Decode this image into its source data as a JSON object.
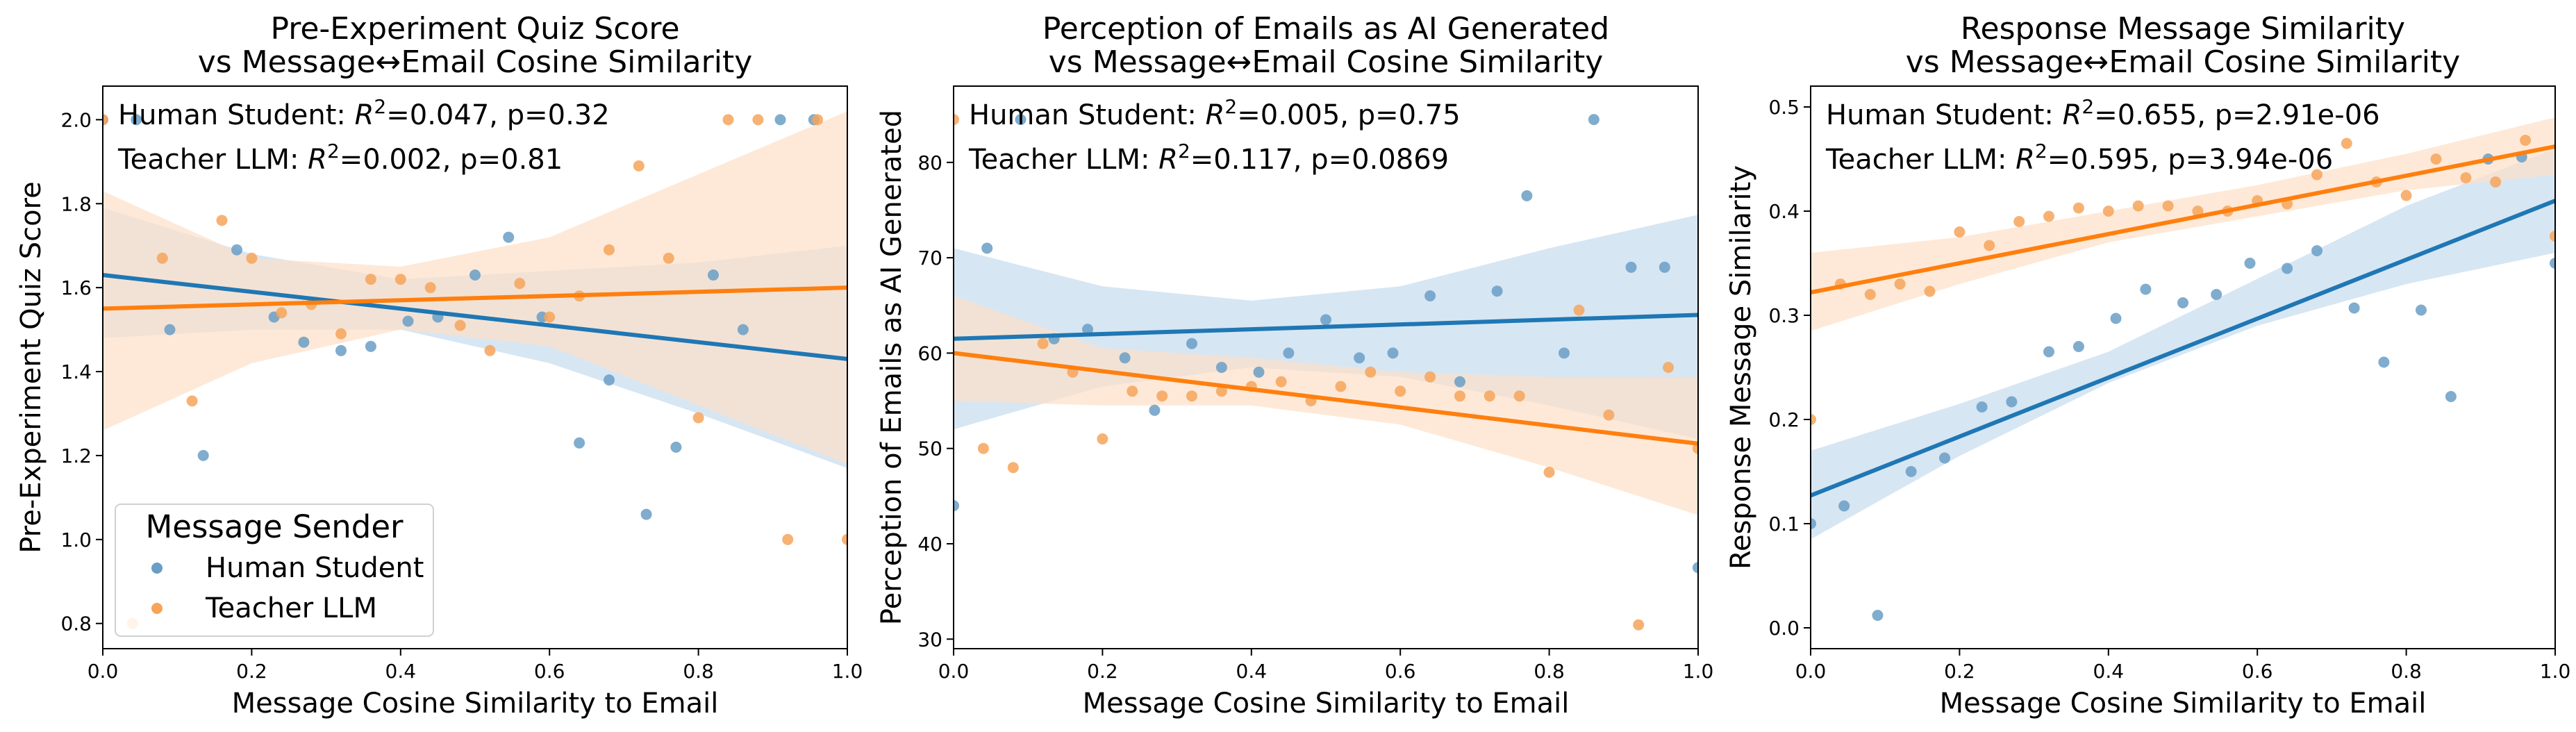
{
  "figure": {
    "legend": {
      "title": "Message Sender",
      "placement": "lower-left of first panel",
      "entries": [
        "Human Student",
        "Teacher LLM"
      ]
    }
  },
  "colors": {
    "human": "#1f77b4",
    "teacher": "#ff7f0e",
    "human_point": "#6a9ec6",
    "teacher_point": "#f6a45a",
    "human_band": "#c6dcee",
    "teacher_band": "#fde0c8"
  },
  "chart_data": [
    {
      "type": "scatter",
      "title_line1": "Pre-Experiment Quiz Score",
      "title_line2": "vs Message↔Email Cosine Similarity",
      "xlabel": "Message Cosine Similarity to Email",
      "ylabel": "Pre-Experiment Quiz Score",
      "xlim": [
        0,
        1
      ],
      "ylim": [
        0.74,
        2.08
      ],
      "xticks": [
        0.0,
        0.2,
        0.4,
        0.6,
        0.8,
        1.0
      ],
      "xtick_labels": [
        "0.0",
        "0.2",
        "0.4",
        "0.6",
        "0.8",
        "1.0"
      ],
      "yticks": [
        0.8,
        1.0,
        1.2,
        1.4,
        1.6,
        1.8,
        2.0
      ],
      "ytick_labels": [
        "0.8",
        "1.0",
        "1.2",
        "1.4",
        "1.6",
        "1.8",
        "2.0"
      ],
      "annotations": [
        {
          "series": "Human Student",
          "prefix": "Human Student: ",
          "r2": "=0.047, p=0.32"
        },
        {
          "series": "Teacher LLM",
          "prefix": "Teacher LLM: ",
          "r2": "=0.002, p=0.81"
        }
      ],
      "series": [
        {
          "name": "Human Student",
          "fit": {
            "x": [
              0,
              1
            ],
            "y": [
              1.63,
              1.43
            ]
          },
          "band": {
            "x": [
              0,
              0.2,
              0.4,
              0.6,
              0.8,
              1.0
            ],
            "lower": [
              1.48,
              1.5,
              1.5,
              1.42,
              1.3,
              1.17
            ],
            "upper": [
              1.79,
              1.68,
              1.62,
              1.64,
              1.66,
              1.7
            ]
          },
          "x": [
            0.0,
            0.045,
            0.09,
            0.135,
            0.18,
            0.23,
            0.27,
            0.32,
            0.36,
            0.41,
            0.45,
            0.5,
            0.545,
            0.59,
            0.64,
            0.68,
            0.73,
            0.77,
            0.82,
            0.86,
            0.91,
            0.955
          ],
          "y": [
            2.0,
            2.0,
            1.5,
            1.2,
            1.69,
            1.53,
            1.47,
            1.45,
            1.46,
            1.52,
            1.53,
            1.63,
            1.72,
            1.53,
            1.23,
            1.38,
            1.06,
            1.22,
            1.63,
            1.5,
            2.0,
            2.0
          ]
        },
        {
          "name": "Teacher LLM",
          "fit": {
            "x": [
              0,
              1
            ],
            "y": [
              1.55,
              1.6
            ]
          },
          "band": {
            "x": [
              0,
              0.2,
              0.4,
              0.6,
              0.8,
              1.0
            ],
            "lower": [
              1.26,
              1.42,
              1.5,
              1.46,
              1.32,
              1.18
            ],
            "upper": [
              1.83,
              1.67,
              1.65,
              1.72,
              1.87,
              2.02
            ]
          },
          "x": [
            0.0,
            0.04,
            0.08,
            0.12,
            0.16,
            0.2,
            0.24,
            0.28,
            0.32,
            0.36,
            0.4,
            0.44,
            0.48,
            0.52,
            0.56,
            0.6,
            0.64,
            0.68,
            0.72,
            0.76,
            0.8,
            0.84,
            0.88,
            0.92,
            0.96,
            1.0
          ],
          "y": [
            2.0,
            0.8,
            1.67,
            1.33,
            1.76,
            1.67,
            1.54,
            1.56,
            1.49,
            1.62,
            1.62,
            1.6,
            1.51,
            1.45,
            1.61,
            1.53,
            1.58,
            1.69,
            1.89,
            1.67,
            1.29,
            2.0,
            2.0,
            1.0,
            2.0,
            1.0
          ]
        }
      ]
    },
    {
      "type": "scatter",
      "title_line1": "Perception of Emails as AI Generated",
      "title_line2": "vs Message↔Email Cosine Similarity",
      "xlabel": "Message Cosine Similarity to Email",
      "ylabel": "Perception of Emails as AI Generated",
      "xlim": [
        0,
        1
      ],
      "ylim": [
        29,
        88
      ],
      "xticks": [
        0.0,
        0.2,
        0.4,
        0.6,
        0.8,
        1.0
      ],
      "xtick_labels": [
        "0.0",
        "0.2",
        "0.4",
        "0.6",
        "0.8",
        "1.0"
      ],
      "yticks": [
        30,
        40,
        50,
        60,
        70,
        80
      ],
      "ytick_labels": [
        "30",
        "40",
        "50",
        "60",
        "70",
        "80"
      ],
      "annotations": [
        {
          "series": "Human Student",
          "prefix": "Human Student: ",
          "r2": "=0.005, p=0.75"
        },
        {
          "series": "Teacher LLM",
          "prefix": "Teacher LLM: ",
          "r2": "=0.117, p=0.0869"
        }
      ],
      "series": [
        {
          "name": "Human Student",
          "fit": {
            "x": [
              0,
              1
            ],
            "y": [
              61.5,
              64
            ]
          },
          "band": {
            "x": [
              0,
              0.2,
              0.4,
              0.6,
              0.8,
              1.0
            ],
            "lower": [
              52,
              56.5,
              58.5,
              57.5,
              54.5,
              51
            ],
            "upper": [
              71,
              67,
              65.5,
              67,
              71,
              74.5
            ]
          },
          "x": [
            0.0,
            0.045,
            0.09,
            0.135,
            0.18,
            0.23,
            0.27,
            0.32,
            0.36,
            0.41,
            0.45,
            0.5,
            0.545,
            0.59,
            0.64,
            0.68,
            0.73,
            0.77,
            0.82,
            0.86,
            0.91,
            0.955,
            1.0
          ],
          "y": [
            44,
            71,
            84.5,
            61.5,
            62.5,
            59.5,
            54,
            61,
            58.5,
            58,
            60,
            63.5,
            59.5,
            60,
            66,
            57,
            66.5,
            76.5,
            60,
            84.5,
            69,
            69,
            37.5
          ]
        },
        {
          "name": "Teacher LLM",
          "fit": {
            "x": [
              0,
              1
            ],
            "y": [
              60,
              50.5
            ]
          },
          "band": {
            "x": [
              0,
              0.2,
              0.4,
              0.6,
              0.8,
              1.0
            ],
            "lower": [
              55,
              54.5,
              54.5,
              52.5,
              48,
              43
            ],
            "upper": [
              66,
              60.5,
              59.5,
              58,
              57.5,
              57.5
            ]
          },
          "x": [
            0.0,
            0.04,
            0.08,
            0.12,
            0.16,
            0.2,
            0.24,
            0.28,
            0.32,
            0.36,
            0.4,
            0.44,
            0.48,
            0.52,
            0.56,
            0.6,
            0.64,
            0.68,
            0.72,
            0.76,
            0.8,
            0.84,
            0.88,
            0.92,
            0.96,
            1.0
          ],
          "y": [
            84.5,
            50,
            48,
            61,
            58,
            51,
            56,
            55.5,
            55.5,
            56,
            56.5,
            57,
            55,
            56.5,
            58,
            56,
            57.5,
            55.5,
            55.5,
            55.5,
            47.5,
            64.5,
            53.5,
            31.5,
            58.5,
            50
          ]
        }
      ]
    },
    {
      "type": "scatter",
      "title_line1": "Response Message Similarity",
      "title_line2": "vs Message↔Email Cosine Similarity",
      "xlabel": "Message Cosine Similarity to Email",
      "ylabel": "Response Message Similarity",
      "xlim": [
        0,
        1
      ],
      "ylim": [
        -0.02,
        0.52
      ],
      "xticks": [
        0.0,
        0.2,
        0.4,
        0.6,
        0.8,
        1.0
      ],
      "xtick_labels": [
        "0.0",
        "0.2",
        "0.4",
        "0.6",
        "0.8",
        "1.0"
      ],
      "yticks": [
        0.0,
        0.1,
        0.2,
        0.3,
        0.4,
        0.5
      ],
      "ytick_labels": [
        "0.0",
        "0.1",
        "0.2",
        "0.3",
        "0.4",
        "0.5"
      ],
      "annotations": [
        {
          "series": "Human Student",
          "prefix": "Human Student: ",
          "r2": "=0.655, p=2.91e-06"
        },
        {
          "series": "Teacher LLM",
          "prefix": "Teacher LLM: ",
          "r2": "=0.595, p=3.94e-06"
        }
      ],
      "series": [
        {
          "name": "Human Student",
          "fit": {
            "x": [
              0,
              1
            ],
            "y": [
              0.127,
              0.41
            ]
          },
          "band": {
            "x": [
              0,
              0.2,
              0.4,
              0.6,
              0.8,
              1.0
            ],
            "lower": [
              0.085,
              0.165,
              0.235,
              0.29,
              0.33,
              0.36
            ],
            "upper": [
              0.17,
              0.215,
              0.265,
              0.335,
              0.405,
              0.46
            ]
          },
          "x": [
            0.0,
            0.045,
            0.09,
            0.135,
            0.18,
            0.23,
            0.27,
            0.32,
            0.36,
            0.41,
            0.45,
            0.5,
            0.545,
            0.59,
            0.64,
            0.68,
            0.73,
            0.77,
            0.82,
            0.86,
            0.91,
            0.955,
            1.0
          ],
          "y": [
            0.1,
            0.117,
            0.012,
            0.15,
            0.163,
            0.212,
            0.217,
            0.265,
            0.27,
            0.297,
            0.325,
            0.312,
            0.32,
            0.35,
            0.345,
            0.362,
            0.307,
            0.255,
            0.305,
            0.222,
            0.45,
            0.452,
            0.35
          ]
        },
        {
          "name": "Teacher LLM",
          "fit": {
            "x": [
              0,
              1
            ],
            "y": [
              0.322,
              0.462
            ]
          },
          "band": {
            "x": [
              0,
              0.2,
              0.4,
              0.6,
              0.8,
              1.0
            ],
            "lower": [
              0.285,
              0.33,
              0.37,
              0.395,
              0.42,
              0.435
            ],
            "upper": [
              0.36,
              0.375,
              0.4,
              0.425,
              0.455,
              0.49
            ]
          },
          "x": [
            0.0,
            0.04,
            0.08,
            0.12,
            0.16,
            0.2,
            0.24,
            0.28,
            0.32,
            0.36,
            0.4,
            0.44,
            0.48,
            0.52,
            0.56,
            0.6,
            0.64,
            0.68,
            0.72,
            0.76,
            0.8,
            0.84,
            0.88,
            0.92,
            0.96,
            1.0
          ],
          "y": [
            0.2,
            0.33,
            0.32,
            0.33,
            0.323,
            0.38,
            0.367,
            0.39,
            0.395,
            0.403,
            0.4,
            0.405,
            0.405,
            0.4,
            0.4,
            0.41,
            0.407,
            0.435,
            0.465,
            0.428,
            0.415,
            0.45,
            0.432,
            0.428,
            0.468,
            0.376
          ]
        }
      ]
    }
  ]
}
